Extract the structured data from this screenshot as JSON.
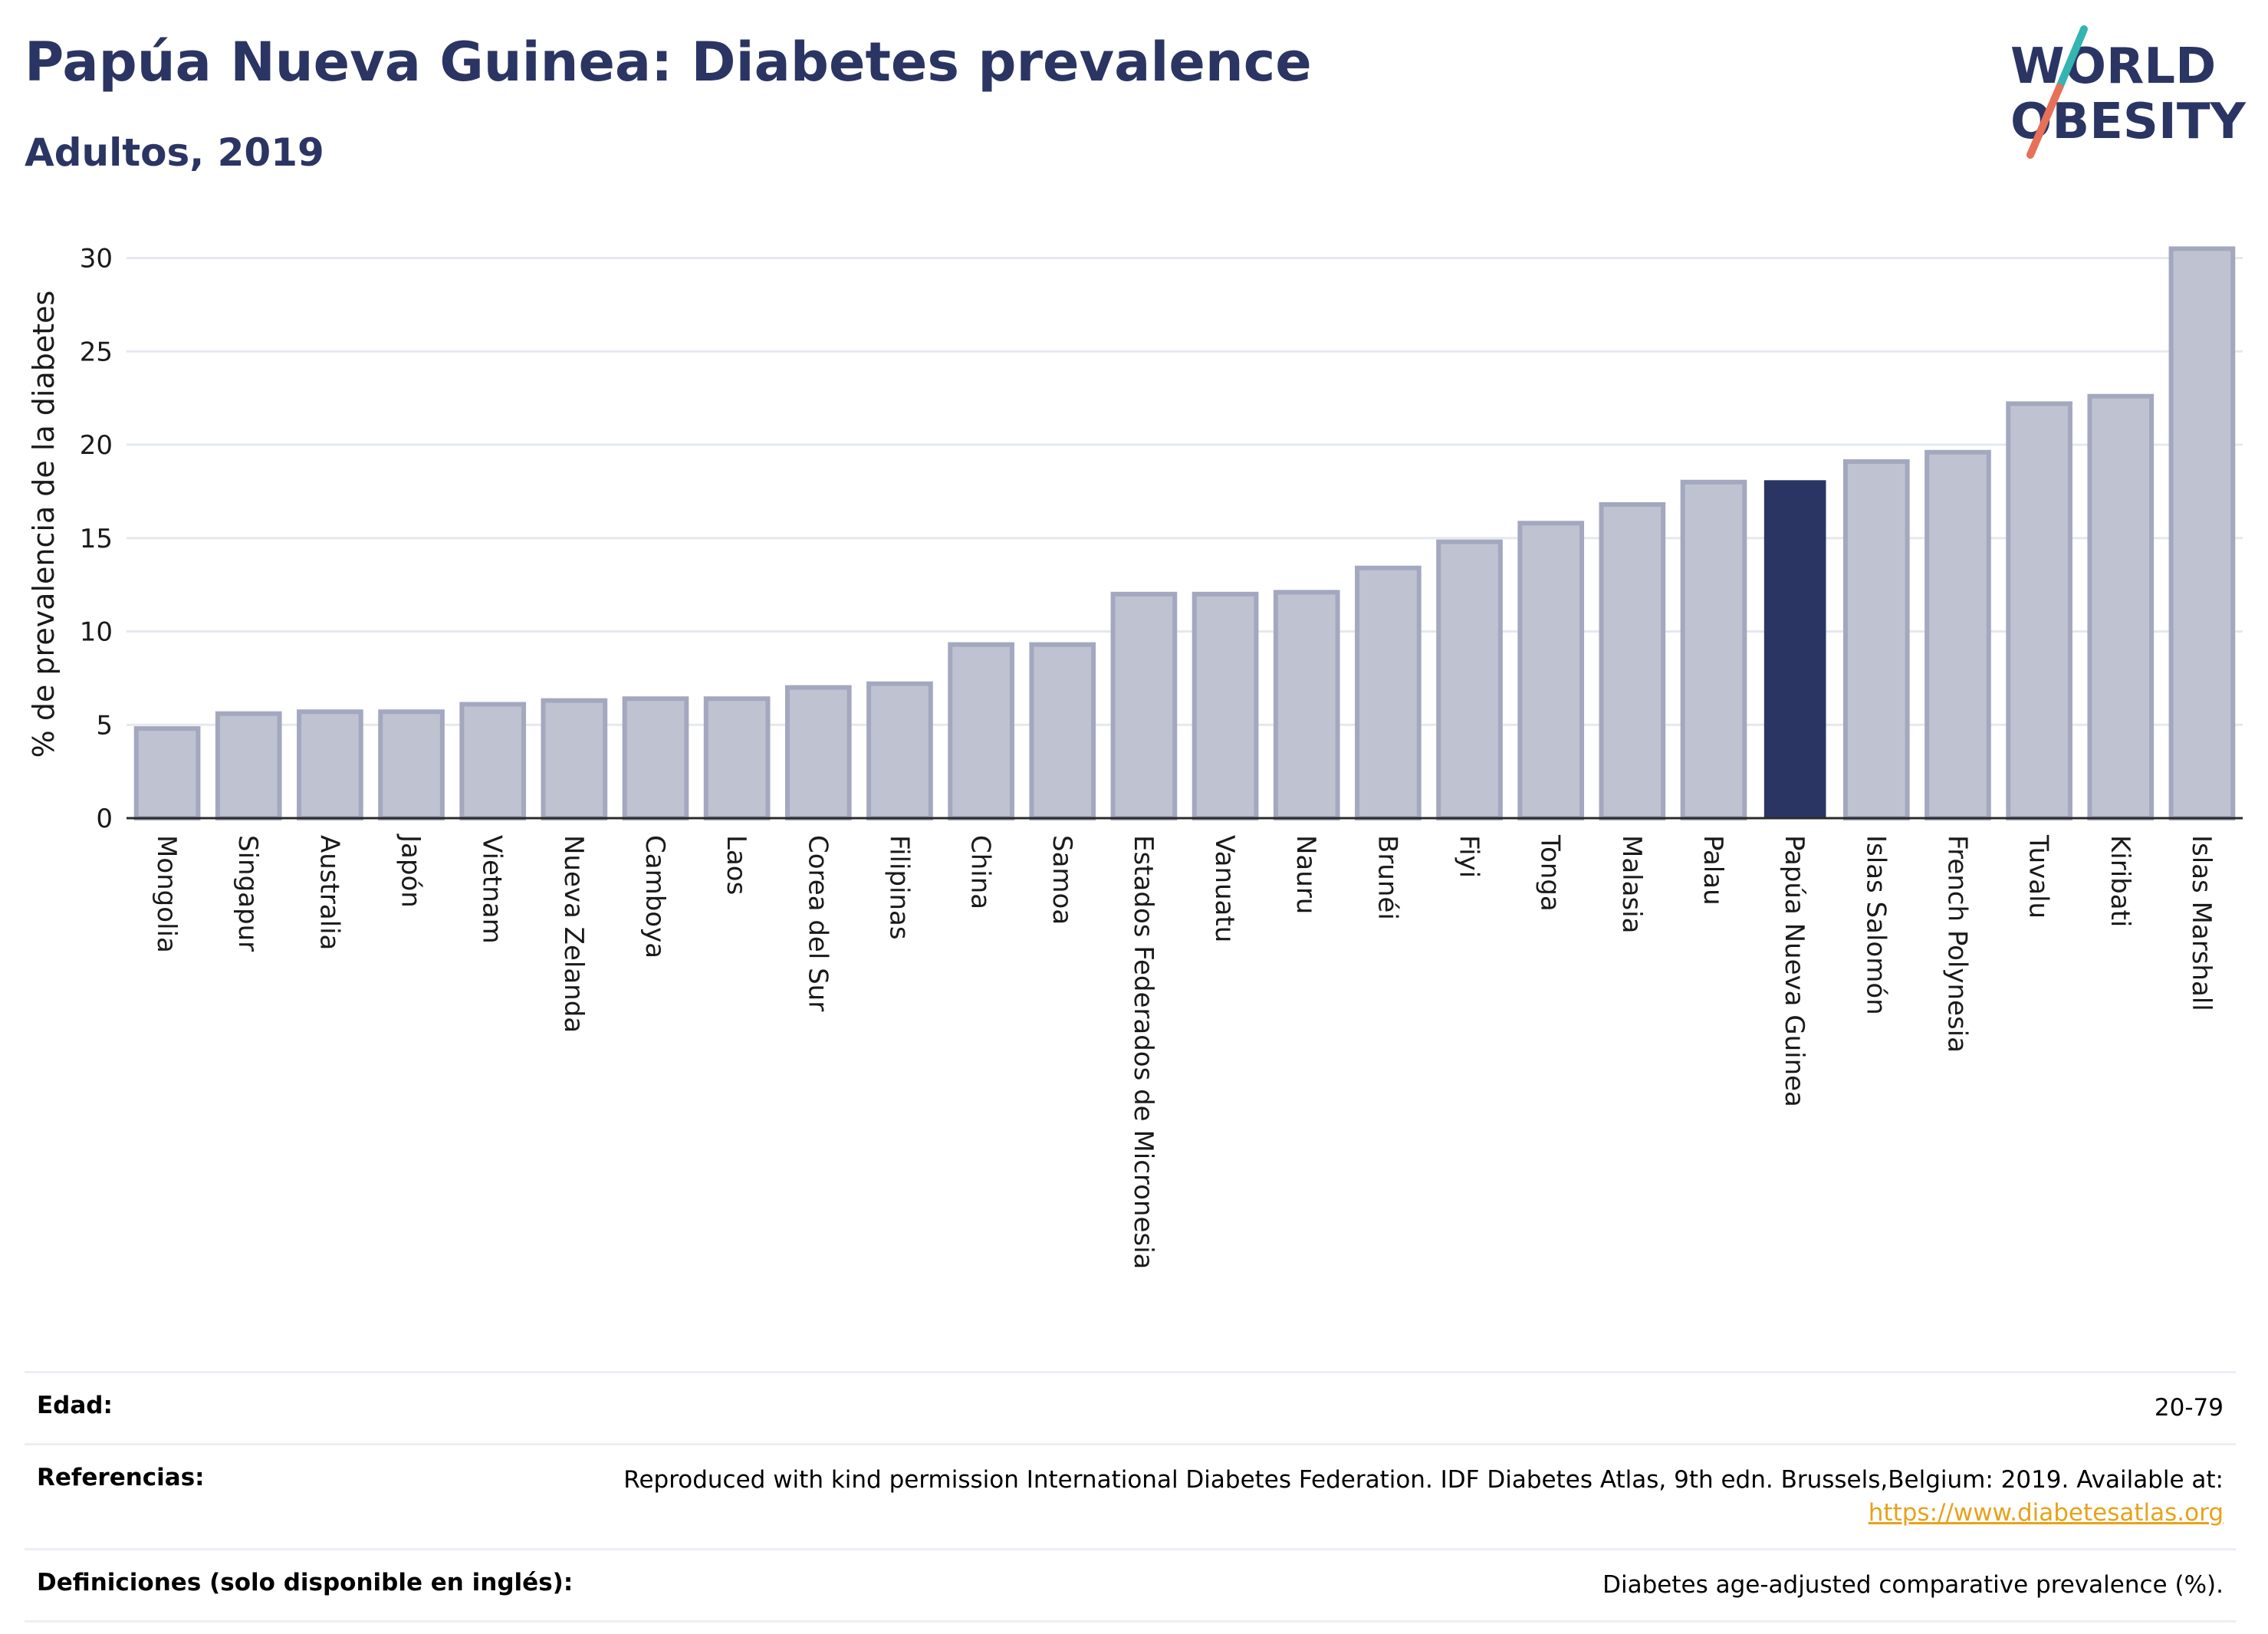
{
  "header": {
    "title": "Papúa Nueva Guinea: Diabetes prevalence",
    "subtitle": "Adultos, 2019"
  },
  "logo": {
    "line1": "WORLD",
    "line2": "OBESITY"
  },
  "chart_data": {
    "type": "bar",
    "title": "Papúa Nueva Guinea: Diabetes prevalence",
    "subtitle": "Adultos, 2019",
    "xlabel": "",
    "ylabel": "% de prevalencia de la diabetes",
    "ylim": [
      0,
      31.5
    ],
    "yticks": [
      0,
      5,
      10,
      15,
      20,
      25,
      30
    ],
    "grid": true,
    "highlight": "Papúa Nueva Guinea",
    "colors": {
      "bar": "#bfc2d0",
      "bar_edge": "#a3a8bf",
      "highlight": "#2b3563",
      "axis": "#2b2b2b",
      "grid": "#e6e8ef"
    },
    "categories": [
      "Mongolia",
      "Singapur",
      "Australia",
      "Japón",
      "Vietnam",
      "Nueva Zelanda",
      "Camboya",
      "Laos",
      "Corea del Sur",
      "Filipinas",
      "China",
      "Samoa",
      "Estados Federados de Micronesia",
      "Vanuatu",
      "Nauru",
      "Brunéi",
      "Fiyi",
      "Tonga",
      "Malasia",
      "Palau",
      "Papúa Nueva Guinea",
      "Islas Salomón",
      "French Polynesia",
      "Tuvalu",
      "Kiribati",
      "Islas Marshall"
    ],
    "values": [
      4.8,
      5.6,
      5.7,
      5.7,
      6.1,
      6.3,
      6.4,
      6.4,
      7.0,
      7.2,
      9.3,
      9.3,
      12.0,
      12.0,
      12.1,
      13.4,
      14.8,
      15.8,
      16.8,
      18.0,
      18.1,
      19.1,
      19.6,
      22.2,
      22.6,
      30.5
    ]
  },
  "table": {
    "rows": [
      {
        "label": "Edad:",
        "value": "20-79"
      },
      {
        "label": "Referencias:",
        "value": "Reproduced with kind permission International Diabetes Federation. IDF Diabetes Atlas, 9th edn. Brussels,Belgium: 2019. Available at:",
        "link": "https://www.diabetesatlas.org"
      },
      {
        "label": "Definiciones (solo disponible en inglés):",
        "value": "Diabetes age-adjusted comparative prevalence (%)."
      }
    ]
  }
}
